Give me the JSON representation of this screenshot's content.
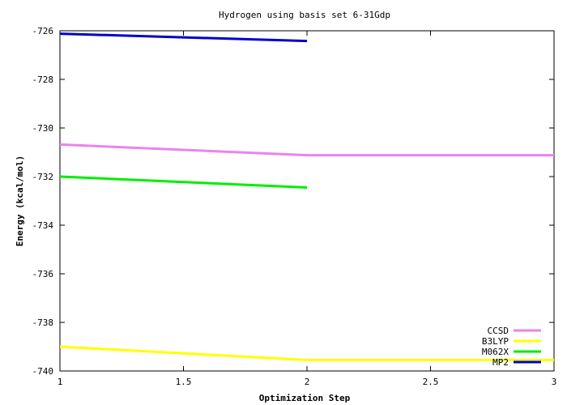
{
  "chart_data": {
    "type": "line",
    "title": "Hydrogen using basis set 6-31Gdp",
    "xlabel": "Optimization Step",
    "ylabel": "Energy (kcal/mol)",
    "xlim": [
      1,
      3
    ],
    "ylim": [
      -740,
      -726
    ],
    "x_ticks": [
      1,
      1.5,
      2,
      2.5,
      3
    ],
    "x_tick_labels": [
      "1",
      "1.5",
      "2",
      "2.5",
      "3"
    ],
    "y_ticks": [
      -740,
      -738,
      -736,
      -734,
      -732,
      -730,
      -728,
      -726
    ],
    "y_tick_labels": [
      "-740",
      "-738",
      "-736",
      "-734",
      "-732",
      "-730",
      "-728",
      "-726"
    ],
    "grid": false,
    "legend_position": "bottom-right",
    "series": [
      {
        "name": "CCSD",
        "color": "#ee82ee",
        "x": [
          1,
          2,
          3
        ],
        "y": [
          -730.68,
          -731.12,
          -731.12
        ]
      },
      {
        "name": "B3LYP",
        "color": "#ffff00",
        "x": [
          1,
          2,
          3
        ],
        "y": [
          -739.0,
          -739.55,
          -739.55
        ]
      },
      {
        "name": "M062X",
        "color": "#00ee00",
        "x": [
          1,
          2
        ],
        "y": [
          -732.0,
          -732.45
        ]
      },
      {
        "name": "MP2",
        "color": "#0000cd",
        "x": [
          1,
          2
        ],
        "y": [
          -726.12,
          -726.42
        ]
      }
    ]
  }
}
